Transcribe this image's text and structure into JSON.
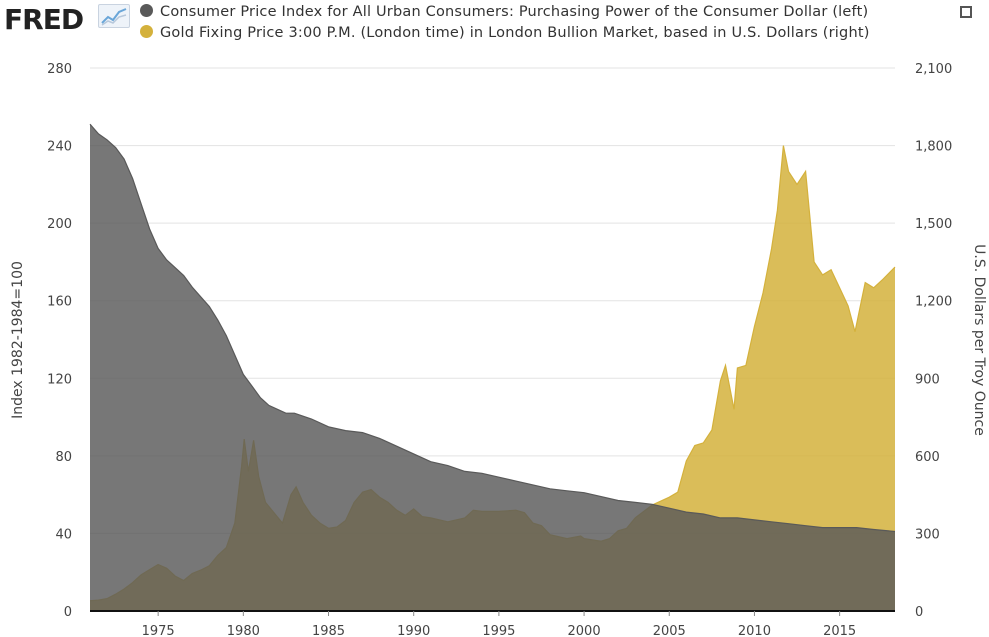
{
  "header": {
    "logo_text": "FRED",
    "logo_icon": "line-chart-icon",
    "expand_icon": "fullscreen-icon"
  },
  "chart_data": {
    "type": "area",
    "title": "",
    "x_start": 1971,
    "x_end": 2018.25,
    "xticks": [
      "1975",
      "1980",
      "1985",
      "1990",
      "1995",
      "2000",
      "2005",
      "2010",
      "2015"
    ],
    "left_axis": {
      "label": "Index 1982-1984=100",
      "ylim": [
        0,
        280
      ],
      "ticks": [
        "0",
        "40",
        "80",
        "120",
        "160",
        "200",
        "240",
        "280"
      ]
    },
    "right_axis": {
      "label": "U.S. Dollars per Troy Ounce",
      "ylim": [
        0,
        2100
      ],
      "ticks": [
        "0",
        "300",
        "600",
        "900",
        "1,200",
        "1,500",
        "1,800",
        "2,100"
      ]
    },
    "grid": true,
    "legend_position": "top",
    "series": [
      {
        "name": "Consumer Price Index for All Urban Consumers: Purchasing Power of the Consumer Dollar (left)",
        "axis": "left",
        "color": "#595959",
        "x": [
          1971,
          1971.5,
          1972,
          1972.5,
          1973,
          1973.5,
          1974,
          1974.5,
          1975,
          1975.5,
          1976,
          1976.5,
          1977,
          1977.5,
          1978,
          1978.5,
          1979,
          1979.5,
          1980,
          1980.5,
          1981,
          1981.5,
          1982,
          1982.5,
          1983,
          1984,
          1985,
          1986,
          1987,
          1988,
          1989,
          1990,
          1991,
          1992,
          1993,
          1994,
          1995,
          1996,
          1997,
          1998,
          1999,
          2000,
          2001,
          2002,
          2003,
          2004,
          2005,
          2006,
          2007,
          2008,
          2009,
          2010,
          2011,
          2012,
          2013,
          2014,
          2015,
          2016,
          2017,
          2018.25
        ],
        "values": [
          251,
          246,
          243,
          239,
          233,
          223,
          210,
          197,
          187,
          181,
          177,
          173,
          167,
          162,
          157,
          150,
          142,
          132,
          122,
          116,
          110,
          106,
          104,
          102,
          102,
          99,
          95,
          93,
          92,
          89,
          85,
          81,
          77,
          75,
          72,
          71,
          69,
          67,
          65,
          63,
          62,
          61,
          59,
          57,
          56,
          55,
          53,
          51,
          50,
          48,
          48,
          47,
          46,
          45,
          44,
          43,
          43,
          43,
          42,
          41
        ]
      },
      {
        "name": "Gold Fixing Price 3:00 P.M. (London time) in London Bullion Market, based in U.S. Dollars (right)",
        "axis": "right",
        "color": "#d4b13c",
        "x": [
          1971,
          1971.5,
          1972,
          1972.5,
          1973,
          1973.5,
          1974,
          1974.5,
          1975,
          1975.5,
          1976,
          1976.5,
          1977,
          1977.5,
          1978,
          1978.5,
          1979,
          1979.5,
          1979.9,
          1980.05,
          1980.3,
          1980.6,
          1980.9,
          1981.3,
          1981.8,
          1982.3,
          1982.8,
          1983.1,
          1983.5,
          1984,
          1984.5,
          1985,
          1985.5,
          1986,
          1986.5,
          1987,
          1987.5,
          1988,
          1988.5,
          1989,
          1989.5,
          1990,
          1990.5,
          1991,
          1992,
          1993,
          1993.5,
          1994,
          1995,
          1996,
          1996.5,
          1997,
          1997.5,
          1998,
          1999,
          1999.8,
          2000,
          2001,
          2001.5,
          2002,
          2002.5,
          2003,
          2004,
          2005,
          2005.5,
          2006,
          2006.5,
          2007,
          2007.5,
          2008,
          2008.3,
          2008.8,
          2009,
          2009.5,
          2010,
          2010.5,
          2011,
          2011.35,
          2011.7,
          2012,
          2012.5,
          2013,
          2013.5,
          2014,
          2014.5,
          2015,
          2015.5,
          2015.9,
          2016.5,
          2017,
          2017.5,
          2018.25
        ],
        "values": [
          40,
          42,
          48,
          65,
          85,
          110,
          140,
          160,
          180,
          165,
          135,
          118,
          145,
          158,
          175,
          215,
          245,
          340,
          560,
          665,
          540,
          660,
          520,
          420,
          380,
          340,
          450,
          480,
          420,
          370,
          340,
          320,
          325,
          350,
          420,
          460,
          470,
          440,
          420,
          390,
          370,
          395,
          365,
          360,
          345,
          360,
          390,
          385,
          385,
          390,
          380,
          340,
          330,
          295,
          280,
          290,
          280,
          270,
          280,
          310,
          320,
          360,
          410,
          440,
          460,
          580,
          640,
          650,
          700,
          890,
          950,
          780,
          940,
          950,
          1100,
          1230,
          1400,
          1550,
          1800,
          1700,
          1650,
          1700,
          1350,
          1300,
          1320,
          1250,
          1180,
          1080,
          1270,
          1250,
          1280,
          1330
        ]
      }
    ]
  }
}
